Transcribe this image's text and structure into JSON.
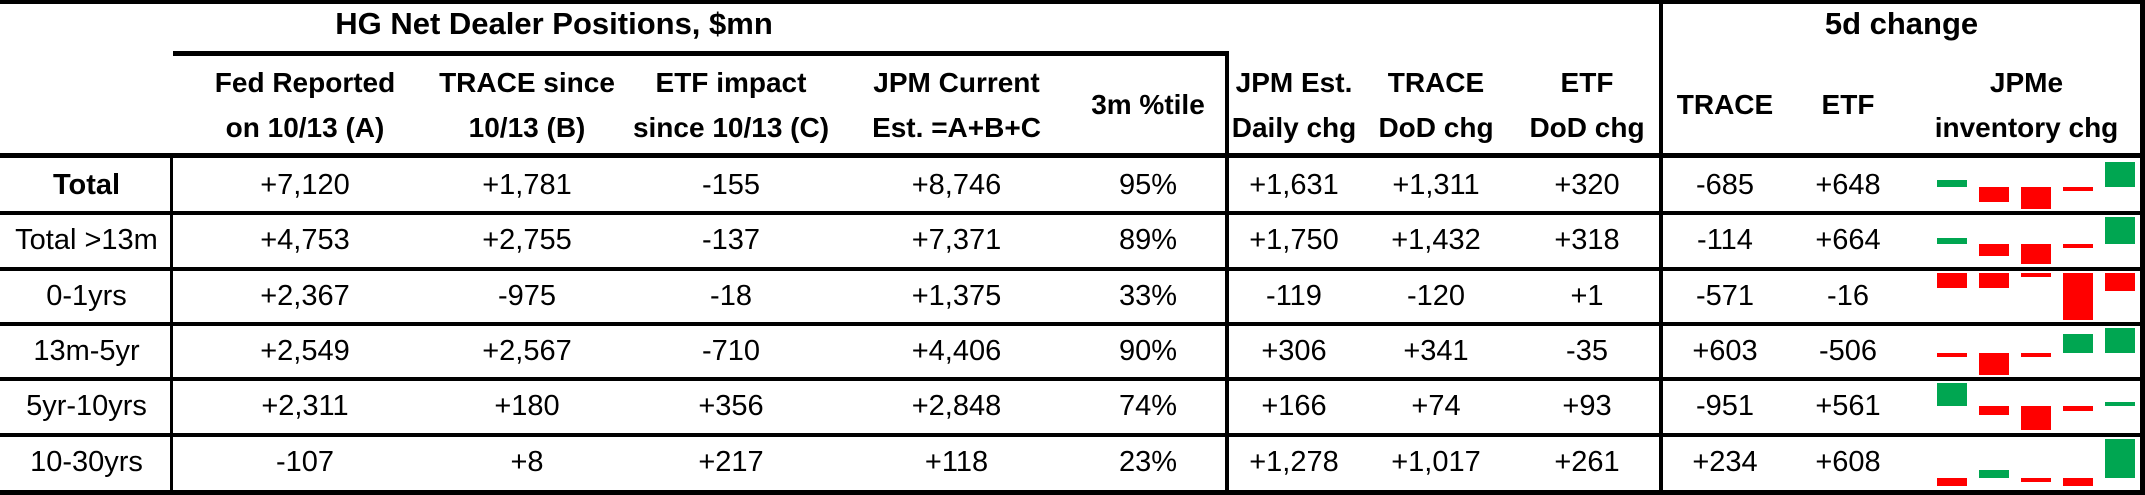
{
  "colors": {
    "green": "#00A651",
    "red": "#FF0000",
    "border": "#000000"
  },
  "table": {
    "title": "HG Net Dealer Positions, $mn",
    "change_title": "5d change",
    "headers": [
      {
        "line1": "Fed Reported",
        "line2": "on 10/13 (A)"
      },
      {
        "line1": "TRACE since",
        "line2": "10/13 (B)"
      },
      {
        "line1": "ETF impact",
        "line2": "since 10/13 (C)"
      },
      {
        "line1": "JPM Current",
        "line2": "Est. =A+B+C"
      },
      {
        "line1": "3m %tile",
        "line2": ""
      },
      {
        "line1": "JPM Est.",
        "line2": "Daily chg"
      },
      {
        "line1": "TRACE",
        "line2": "DoD chg"
      },
      {
        "line1": "ETF",
        "line2": "DoD chg"
      },
      {
        "line1": "TRACE",
        "line2": ""
      },
      {
        "line1": "ETF",
        "line2": ""
      },
      {
        "line1": "JPMe",
        "line2": "inventory chg"
      }
    ],
    "rows": [
      {
        "label": "Total",
        "bold": true,
        "values": [
          "+7,120",
          "+1,781",
          "-155",
          "+8,746",
          "95%",
          "+1,631",
          "+1,311",
          "+320",
          "-685",
          "+648"
        ],
        "spark": [
          2,
          -4,
          -6,
          -1,
          7
        ]
      },
      {
        "label": "Total >13m",
        "bold": false,
        "values": [
          "+4,753",
          "+2,755",
          "-137",
          "+7,371",
          "89%",
          "+1,750",
          "+1,432",
          "+318",
          "-114",
          "+664"
        ],
        "spark": [
          2,
          -4,
          -7,
          -1,
          9
        ]
      },
      {
        "label": "0-1yrs",
        "bold": false,
        "values": [
          "+2,367",
          "-975",
          "-18",
          "+1,375",
          "33%",
          "-119",
          "-120",
          "+1",
          "-571",
          "-16"
        ],
        "spark": [
          -5,
          -5,
          -1,
          -15,
          -6
        ]
      },
      {
        "label": "13m-5yr",
        "bold": false,
        "values": [
          "+2,549",
          "+2,567",
          "-710",
          "+4,406",
          "90%",
          "+306",
          "+341",
          "-35",
          "+603",
          "-506"
        ],
        "spark": [
          -1,
          -8,
          -1,
          7,
          9
        ]
      },
      {
        "label": "5yr-10yrs",
        "bold": false,
        "values": [
          "+2,311",
          "+180",
          "+356",
          "+2,848",
          "74%",
          "+166",
          "+74",
          "+93",
          "-951",
          "+561"
        ],
        "spark": [
          9,
          -4,
          -10,
          -2,
          1
        ]
      },
      {
        "label": "10-30yrs",
        "bold": false,
        "values": [
          "-107",
          "+8",
          "+217",
          "+118",
          "23%",
          "+1,278",
          "+1,017",
          "+261",
          "+234",
          "+608"
        ],
        "spark": [
          -3,
          3,
          -1,
          -3,
          15
        ]
      }
    ]
  }
}
